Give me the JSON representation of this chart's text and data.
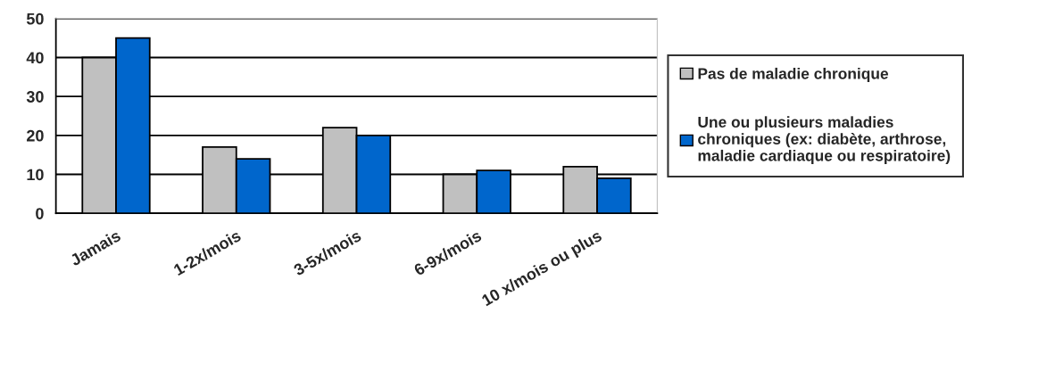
{
  "chart_data": {
    "type": "bar",
    "categories": [
      "Jamais",
      "1-2x/mois",
      "3-5x/mois",
      "6-9x/mois",
      "10 x/mois ou plus"
    ],
    "series": [
      {
        "name": "Pas de maladie chronique",
        "color": "#c0c0c0",
        "values": [
          40,
          17,
          22,
          10,
          12
        ]
      },
      {
        "name": "Une ou plusieurs maladies\nchroniques (ex: diabète, arthrose,\nmaladie cardiaque ou respiratoire)",
        "color": "#0066cc",
        "values": [
          45,
          14,
          20,
          11,
          9
        ]
      }
    ],
    "ylim": [
      0,
      50
    ],
    "yticks": [
      0,
      10,
      20,
      30,
      40,
      50
    ],
    "grid": "y",
    "legend": "right"
  }
}
